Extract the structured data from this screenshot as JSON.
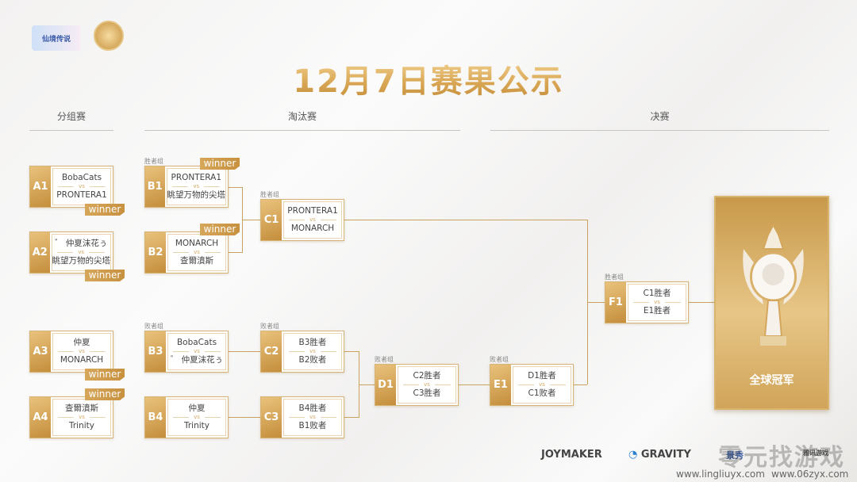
{
  "header": {
    "logo_text": "仙境传说",
    "title": "12月7日赛果公示"
  },
  "sections": {
    "group": "分组赛",
    "knockout": "淘汰赛",
    "final": "决赛"
  },
  "winner_label": "winner",
  "matches": [
    {
      "id": "A1",
      "top": "BobaCats",
      "vs": "vs",
      "bottom": "PRONTERA1",
      "winner": "bottom"
    },
    {
      "id": "A2",
      "top": "゛ 仲夏沫花ぅ",
      "vs": "vs",
      "bottom": "眺望万物的尖塔",
      "winner": "bottom"
    },
    {
      "id": "A3",
      "top": "仲夏",
      "vs": "vs",
      "bottom": "MONARCH",
      "winner": "bottom"
    },
    {
      "id": "A4",
      "top": "查爾濆斯",
      "vs": "vs",
      "bottom": "Trinity",
      "winner": "top"
    },
    {
      "id": "B1",
      "group": "胜者组",
      "top": "PRONTERA1",
      "vs": "vs",
      "bottom": "眺望万物的尖塔",
      "winner": "top"
    },
    {
      "id": "B2",
      "top": "MONARCH",
      "vs": "vs",
      "bottom": "查爾濆斯",
      "winner": "top"
    },
    {
      "id": "B3",
      "group": "败者组",
      "top": "BobaCats",
      "vs": "vs",
      "bottom": "゛ 仲夏沫花ぅ"
    },
    {
      "id": "B4",
      "top": "仲夏",
      "vs": "vs",
      "bottom": "Trinity"
    },
    {
      "id": "C1",
      "group": "胜者组",
      "top": "PRONTERA1",
      "vs": "vs",
      "bottom": "MONARCH"
    },
    {
      "id": "C2",
      "group": "败者组",
      "top": "B3胜者",
      "vs": "vs",
      "bottom": "B2败者"
    },
    {
      "id": "C3",
      "top": "B4胜者",
      "vs": "vs",
      "bottom": "B1败者"
    },
    {
      "id": "D1",
      "group": "败者组",
      "top": "C2胜者",
      "vs": "vs",
      "bottom": "C3胜者"
    },
    {
      "id": "E1",
      "group": "败者组",
      "top": "D1胜者",
      "vs": "vs",
      "bottom": "C1败者"
    },
    {
      "id": "F1",
      "group": "胜者组",
      "top": "C1胜者",
      "vs": "vs",
      "bottom": "E1胜者"
    }
  ],
  "champion": {
    "label": "全球冠军"
  },
  "sponsors": [
    "JOYMAKER",
    "GRAVITY",
    "景秀",
    "雅讯游戏"
  ],
  "watermark": {
    "text": "零元找游戏",
    "urls": [
      "www.lingliuyx.com",
      "www.06zyx.com"
    ]
  },
  "colors": {
    "gold": "#c8913f",
    "gold_light": "#e9c27c"
  }
}
